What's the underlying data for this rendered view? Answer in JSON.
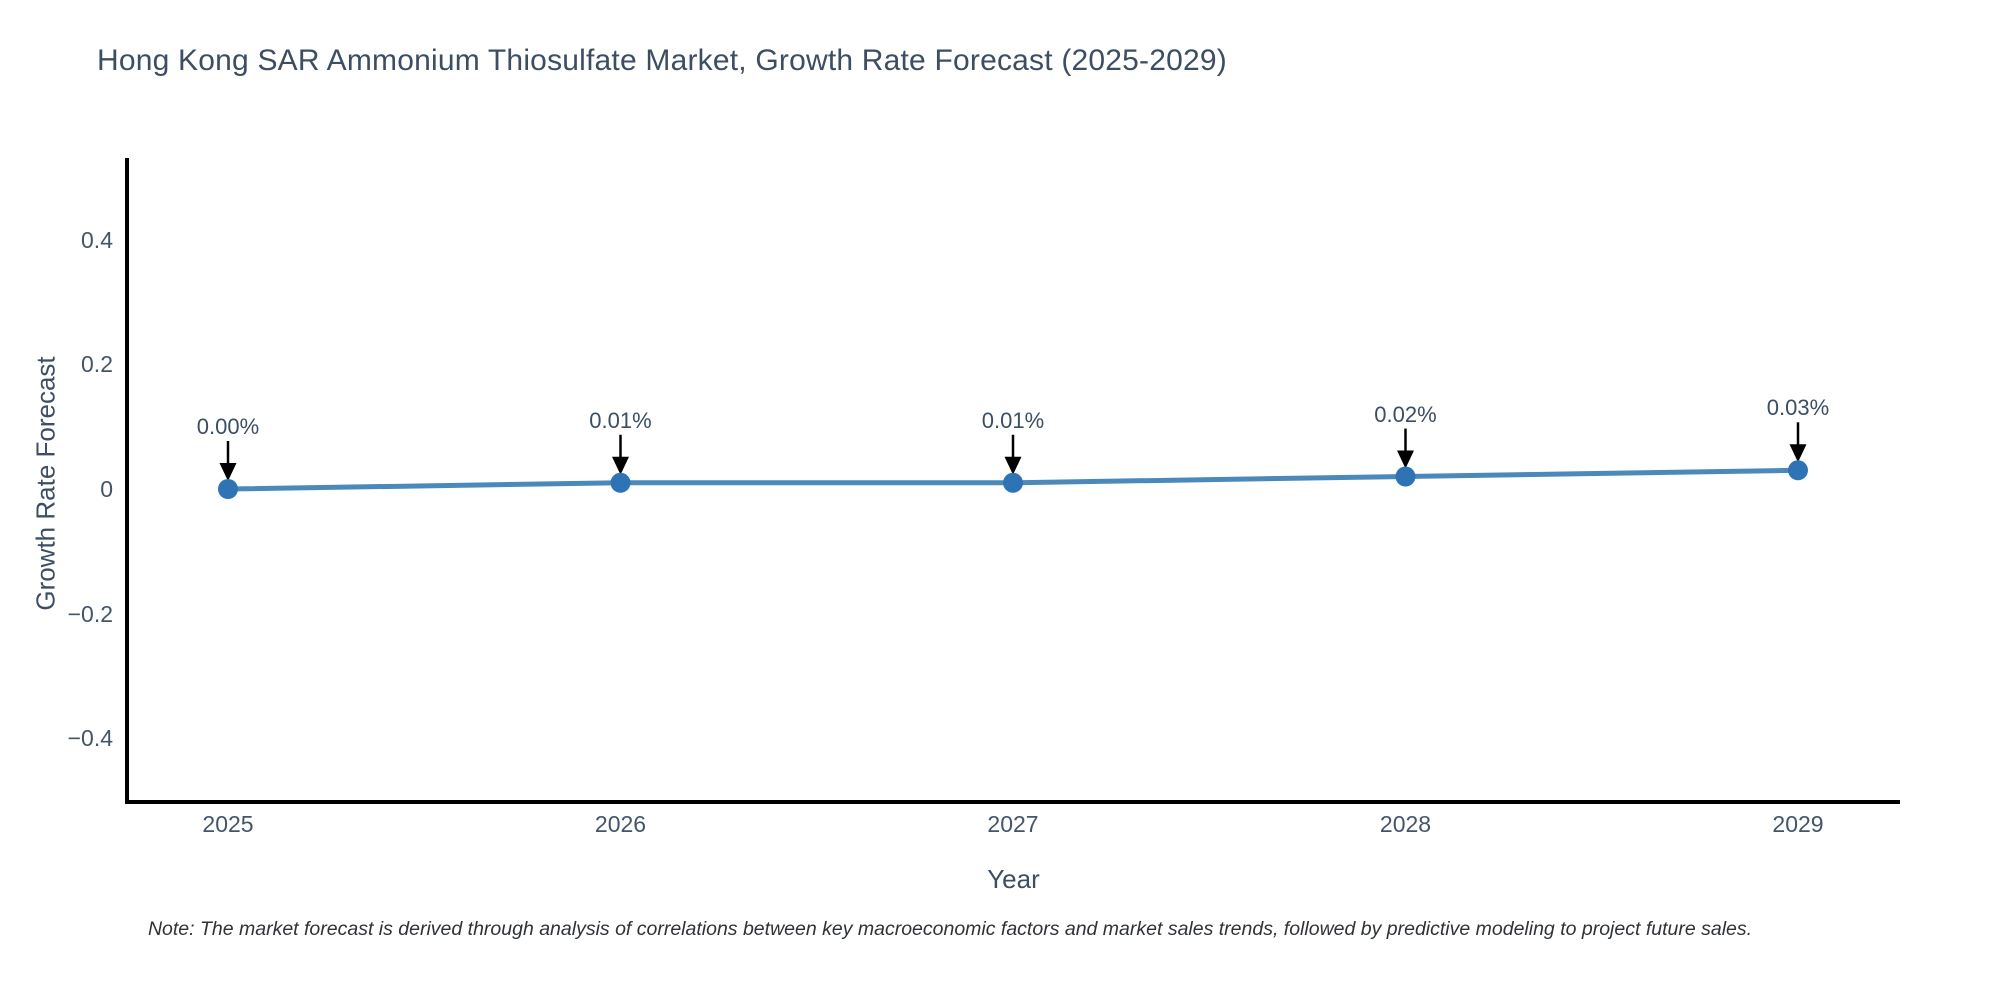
{
  "title": "Hong Kong SAR Ammonium Thiosulfate Market, Growth Rate Forecast (2025-2029)",
  "note": "Note: The market forecast is derived through analysis of correlations between key macroeconomic factors and market sales trends, followed by predictive modeling to project future sales.",
  "chart_data": {
    "type": "line",
    "title": "Hong Kong SAR Ammonium Thiosulfate Market, Growth Rate Forecast (2025-2029)",
    "xlabel": "Year",
    "ylabel": "Growth Rate Forecast",
    "x": [
      2025,
      2026,
      2027,
      2028,
      2029
    ],
    "values": [
      0.0,
      0.01,
      0.01,
      0.02,
      0.03
    ],
    "point_labels": [
      "0.00%",
      "0.01%",
      "0.01%",
      "0.02%",
      "0.03%"
    ],
    "series_name": "Growth Rate Forecast",
    "ylim": [
      -0.5,
      0.53
    ],
    "yticks": [
      0.4,
      0.2,
      0,
      -0.2,
      -0.4
    ],
    "ytick_labels": [
      "0.4",
      "0.2",
      "0",
      "−0.2",
      "−0.4"
    ],
    "grid": false,
    "legend_position": "none",
    "annotations_have_arrows": true,
    "colors": {
      "line": "#4a89ba",
      "marker": "#2e74b5",
      "axis": "#000000",
      "arrow": "#000000",
      "title_text": "#3d4e63",
      "tick_text": "#44556a",
      "background": "#ffffff"
    }
  }
}
